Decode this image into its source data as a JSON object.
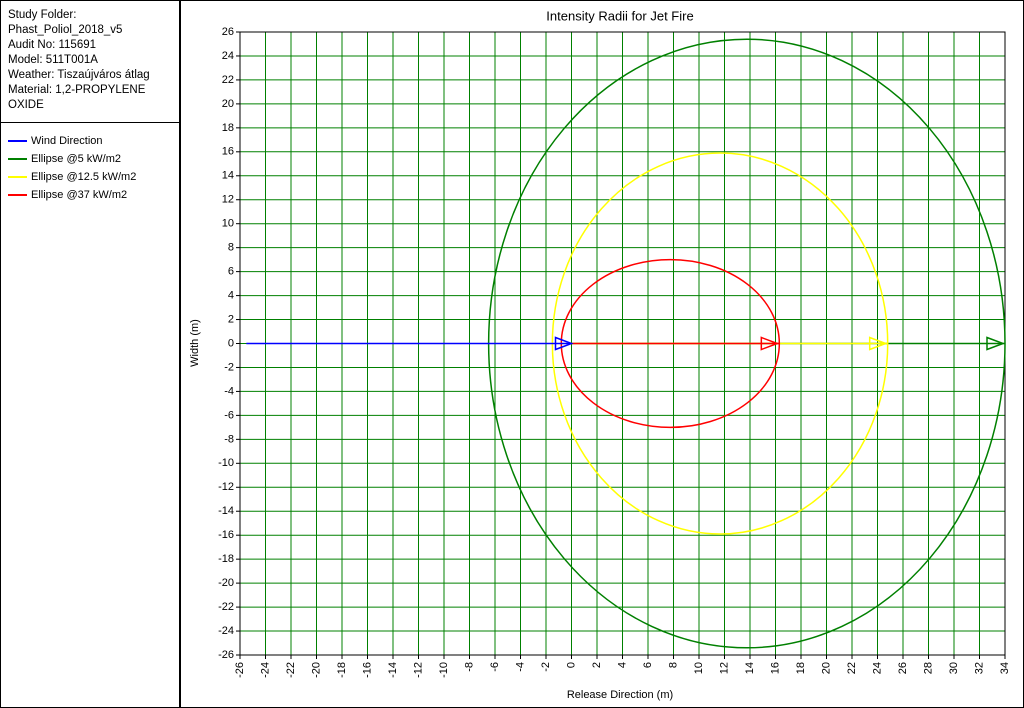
{
  "info_lines": [
    "Study Folder:",
    "Phast_Poliol_2018_v5",
    "Audit No: 115691",
    "Model: 511T001A",
    "Weather: Tiszaújváros átlag",
    "Material: 1,2-PROPYLENE",
    "OXIDE"
  ],
  "chart_data": {
    "type": "ellipse",
    "title": "Intensity Radii for Jet Fire",
    "x_label": "Release Direction (m)",
    "y_label": "Width (m)",
    "xlim": [
      -26,
      34
    ],
    "ylim": [
      -26,
      26
    ],
    "xticks": [
      -26,
      -24,
      -22,
      -20,
      -18,
      -16,
      -14,
      -12,
      -10,
      -8,
      -6,
      -4,
      -2,
      0,
      2,
      4,
      6,
      8,
      10,
      12,
      14,
      16,
      18,
      20,
      22,
      24,
      26,
      28,
      30,
      32,
      34
    ],
    "yticks": [
      -26,
      -24,
      -22,
      -20,
      -18,
      -16,
      -14,
      -12,
      -10,
      -8,
      -6,
      -4,
      -2,
      0,
      2,
      4,
      6,
      8,
      10,
      12,
      14,
      16,
      18,
      20,
      22,
      24,
      26
    ],
    "grid": true,
    "grid_color": "#008000",
    "series": [
      {
        "name": "Wind Direction",
        "color": "#0000ff",
        "x": [
          -25.5,
          0
        ],
        "values": [
          0,
          0
        ]
      },
      {
        "name": "Ellipse @5 kW/m2",
        "color": "#008000",
        "x": [
          -6.5,
          34
        ],
        "values": [
          -25.4,
          25.4
        ]
      },
      {
        "name": "Ellipse @12.5 kW/m2",
        "color": "#ffff00",
        "x": [
          -1.5,
          24.8
        ],
        "values": [
          -15.9,
          15.9
        ]
      },
      {
        "name": "Ellipse @37 kW/m2",
        "color": "#ff0000",
        "x": [
          -0.8,
          16.3
        ],
        "values": [
          -7,
          7
        ]
      }
    ]
  }
}
